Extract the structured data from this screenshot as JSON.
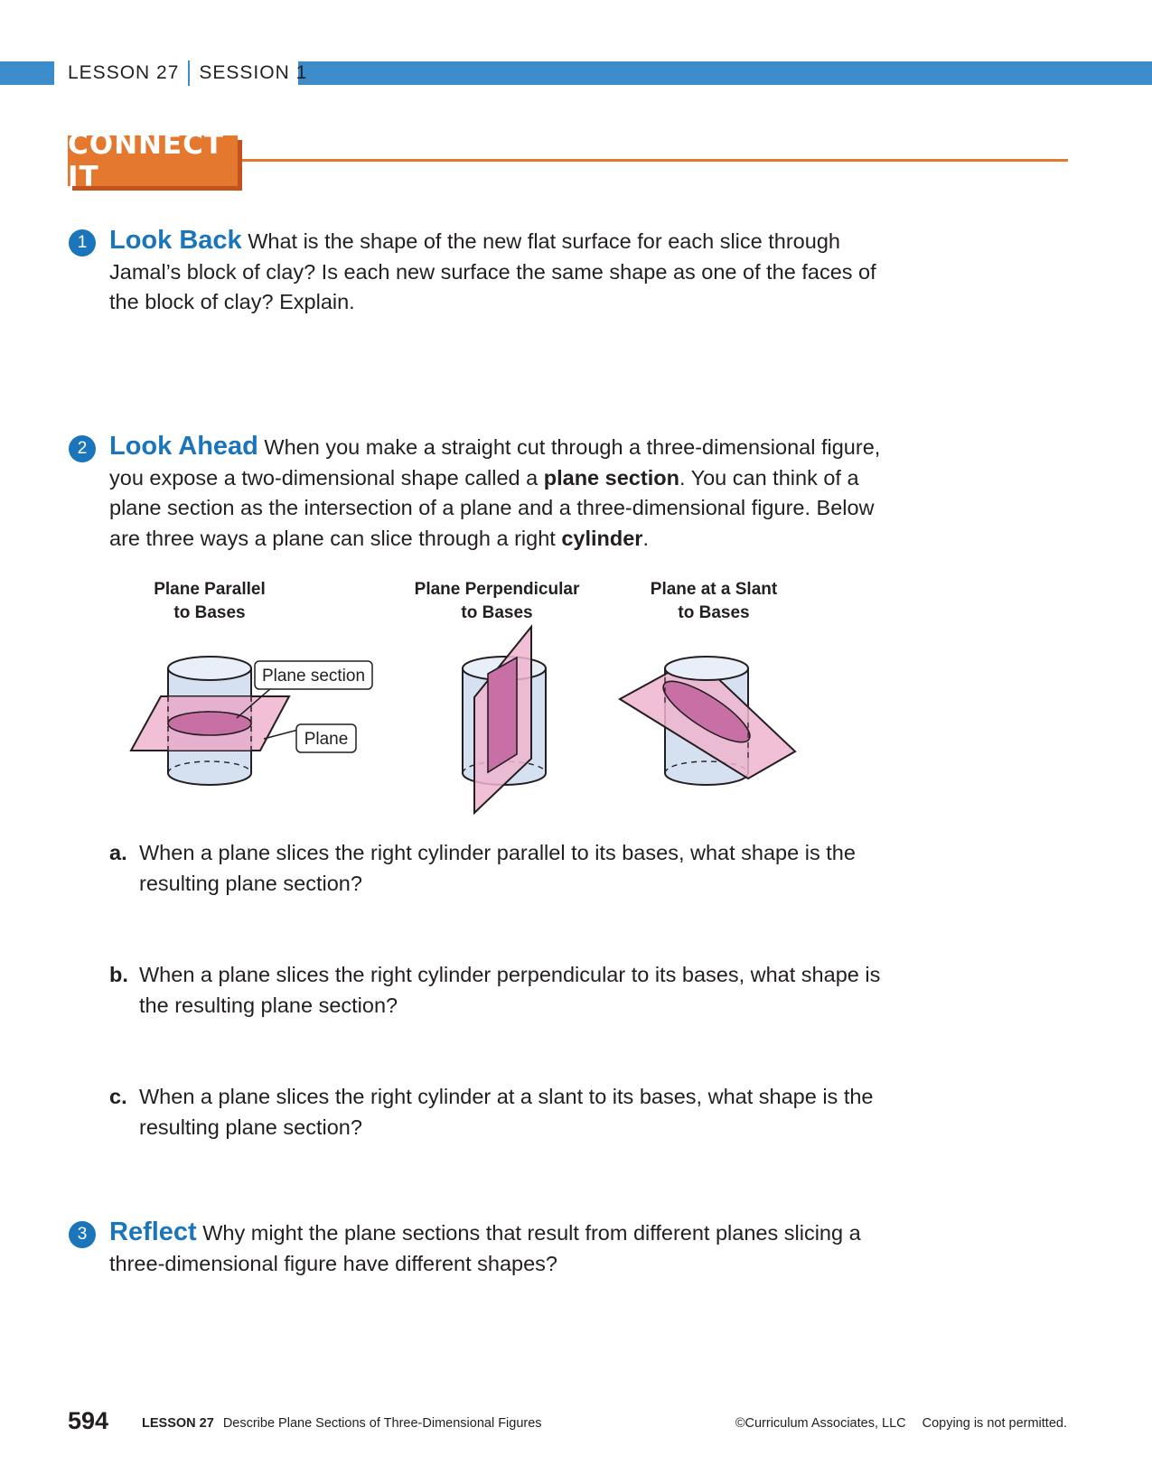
{
  "header": {
    "lesson": "LESSON 27",
    "session": "SESSION 1"
  },
  "connect_it": "CONNECT IT",
  "problems": [
    {
      "number": "1",
      "keyword": "Look Back",
      "text": "What is the shape of the new flat surface for each slice through Jamal’s block of clay? Is each new surface the same shape as one of the faces of the block of clay? Explain."
    },
    {
      "number": "2",
      "keyword": "Look Ahead",
      "text_1": "When you make a straight cut through a three-dimensional figure, you expose a two-dimensional shape called a ",
      "bold_1": "plane section",
      "text_2": ". You can think of a plane section as the intersection of a plane and a three-dimensional figure. Below are three ways a plane can slice through a right ",
      "bold_2": "cylinder",
      "text_3": ".",
      "figures": [
        {
          "title_line1": "Plane Parallel",
          "title_line2": "to Bases",
          "callout_section": "Plane section",
          "callout_plane": "Plane"
        },
        {
          "title_line1": "Plane Perpendicular",
          "title_line2": "to Bases"
        },
        {
          "title_line1": "Plane at a Slant",
          "title_line2": "to Bases"
        }
      ],
      "parts": [
        {
          "label": "a.",
          "text": "When a plane slices the right cylinder parallel to its bases, what shape is the resulting plane section?"
        },
        {
          "label": "b.",
          "text": "When a plane slices the right cylinder perpendicular to its bases, what shape is the resulting plane section?"
        },
        {
          "label": "c.",
          "text": "When a plane slices the right cylinder at a slant to its bases, what shape is the resulting plane section?"
        }
      ]
    },
    {
      "number": "3",
      "keyword": "Reflect",
      "text": "Why might the plane sections that result from different planes slicing a three-dimensional figure have different shapes?"
    }
  ],
  "footer": {
    "page_number": "594",
    "lesson": "LESSON 27",
    "lesson_title": "Describe Plane Sections of Three-Dimensional Figures",
    "copyright": "©Curriculum Associates, LLC",
    "notice": "Copying is not permitted."
  },
  "colors": {
    "header_blue": "#3c8ccb",
    "connect_orange": "#e4782e",
    "keyword_blue": "#1a75bb",
    "cylinder_fill": "#d5e1f1",
    "plane_pink": "#efb4cf",
    "section_magenta": "#c870a6"
  }
}
